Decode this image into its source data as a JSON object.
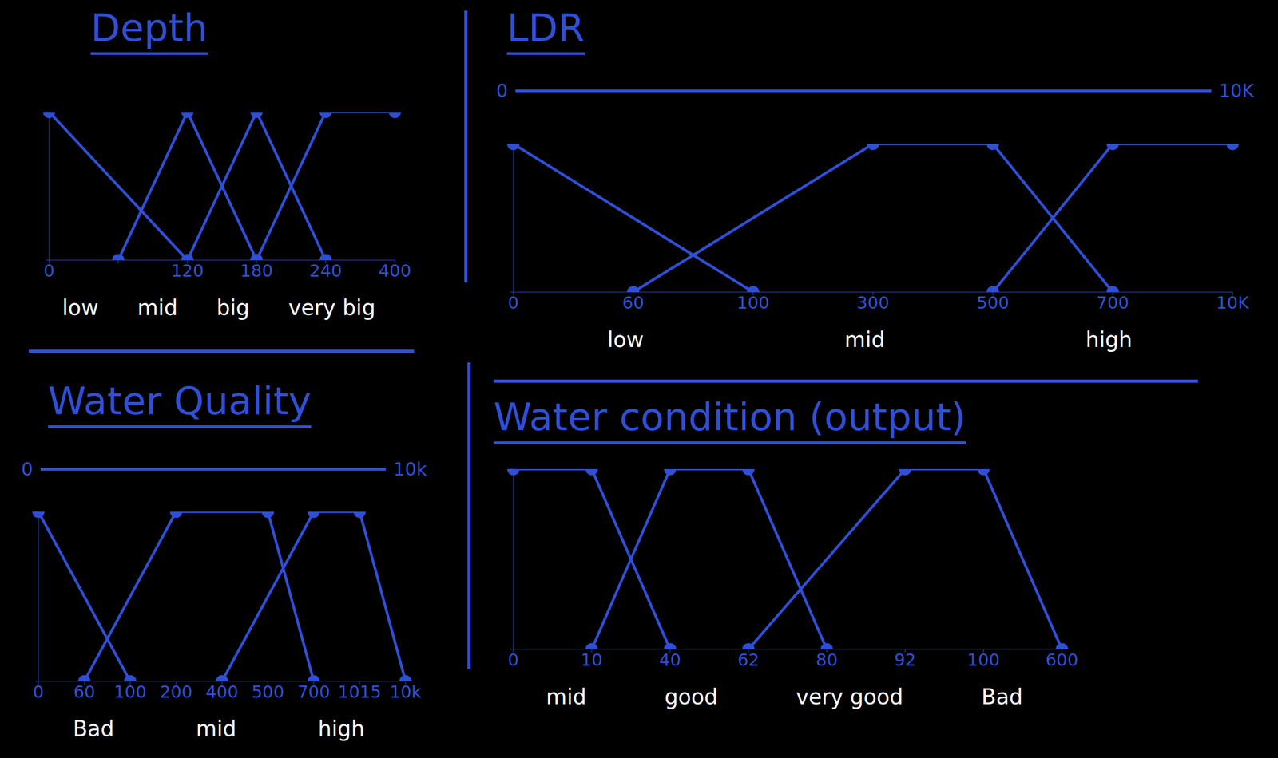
{
  "chart_data": [
    {
      "type": "line",
      "title": "Depth",
      "categories": [
        "0",
        null,
        "120",
        "180",
        "240",
        "400"
      ],
      "ylim": [
        0,
        1
      ],
      "yticks": [
        0,
        1
      ],
      "tick_labels": "x",
      "color": "#2f4fd6",
      "marker": "circle",
      "legend": "bottom",
      "series": [
        {
          "name": "low",
          "values": [
            1,
            null,
            0,
            null,
            null,
            null
          ]
        },
        {
          "name": "mid",
          "values": [
            null,
            0,
            1,
            0,
            null,
            null
          ]
        },
        {
          "name": "big",
          "values": [
            null,
            null,
            0,
            1,
            0,
            null
          ]
        },
        {
          "name": "very big",
          "values": [
            null,
            null,
            null,
            0,
            1,
            1
          ]
        }
      ]
    },
    {
      "type": "line",
      "title": "LDR",
      "scale_bar": {
        "start": "0",
        "end": "10K"
      },
      "categories": [
        "0",
        "60",
        "100",
        "300",
        "500",
        "700",
        "10K"
      ],
      "ylim": [
        0,
        1
      ],
      "yticks": [
        0,
        1
      ],
      "tick_labels": "x",
      "color": "#2f4fd6",
      "marker": "circle",
      "legend": "bottom",
      "series": [
        {
          "name": "low",
          "values": [
            1,
            null,
            0,
            null,
            null,
            null,
            null
          ]
        },
        {
          "name": "mid",
          "values": [
            null,
            0,
            null,
            1,
            1,
            0,
            null
          ]
        },
        {
          "name": "high",
          "values": [
            null,
            null,
            null,
            null,
            0,
            1,
            1
          ]
        }
      ]
    },
    {
      "type": "line",
      "title": "Water Quality",
      "scale_bar": {
        "start": "0",
        "end": "10k"
      },
      "categories": [
        "0",
        "60",
        "100",
        "200",
        "400",
        "500",
        "700",
        "1015",
        "10k"
      ],
      "ylim": [
        0,
        1
      ],
      "yticks": [
        0,
        1
      ],
      "tick_labels": "x",
      "color": "#2f4fd6",
      "marker": "circle",
      "legend": "bottom",
      "series": [
        {
          "name": "Bad",
          "values": [
            1,
            null,
            0,
            null,
            null,
            null,
            null,
            null,
            null
          ]
        },
        {
          "name": "mid",
          "values": [
            null,
            0,
            null,
            1,
            null,
            1,
            0,
            null,
            null
          ]
        },
        {
          "name": "high",
          "values": [
            null,
            null,
            null,
            null,
            0,
            null,
            1,
            1,
            0
          ]
        }
      ]
    },
    {
      "type": "line",
      "title": "Water condition (output)",
      "annotations": [
        "Bad"
      ],
      "categories": [
        "0",
        "10",
        "40",
        "62",
        "80",
        "92",
        "100",
        "600"
      ],
      "ylim": [
        0,
        1
      ],
      "yticks": [
        0,
        1
      ],
      "tick_labels": "x",
      "color": "#2f4fd6",
      "marker": "circle",
      "legend": "bottom",
      "series": [
        {
          "name": "mid",
          "values": [
            1,
            1,
            0,
            null,
            null,
            null,
            null,
            null
          ]
        },
        {
          "name": "good",
          "values": [
            null,
            0,
            1,
            1,
            0,
            null,
            null,
            null
          ]
        },
        {
          "name": "very good",
          "values": [
            null,
            null,
            null,
            0,
            null,
            1,
            1,
            0
          ]
        }
      ]
    }
  ]
}
